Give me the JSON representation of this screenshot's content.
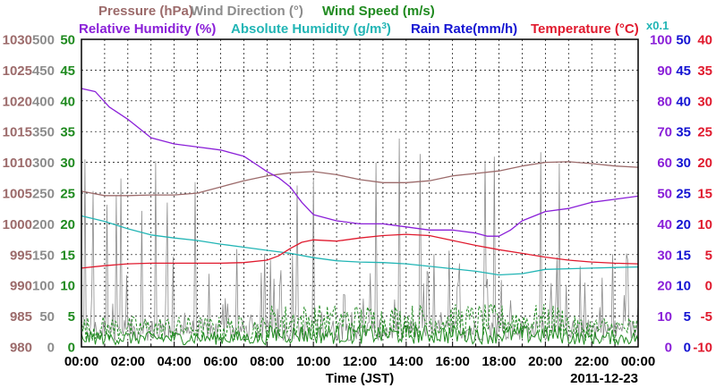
{
  "chart_data": {
    "type": "line",
    "date_label": "2011-12-23",
    "xlabel": "Time (JST)",
    "x_ticks": [
      "00:00",
      "02:00",
      "04:00",
      "06:00",
      "08:00",
      "10:00",
      "12:00",
      "14:00",
      "16:00",
      "18:00",
      "20:00",
      "22:00",
      "00:00"
    ],
    "grid": true,
    "legend": [
      {
        "id": "pressure",
        "label": "Pressure (hPa)",
        "color": "#9c6b6b"
      },
      {
        "id": "wind_dir",
        "label": "Wind Direction (°)",
        "color": "#8c8c8c"
      },
      {
        "id": "wind_speed",
        "label": "Wind Speed (m/s)",
        "color": "#1f8a1f"
      },
      {
        "id": "rh",
        "label": "Relative Humidity (%)",
        "color": "#8a1fd8"
      },
      {
        "id": "abs_hum",
        "label": "Absolute Humidity (g/m",
        "sup": "3",
        "tail": ")",
        "color": "#22b5b5"
      },
      {
        "id": "rain",
        "label": "Rain Rate(mm/h)",
        "color": "#1414d2"
      },
      {
        "id": "temp",
        "label": "Temperature (°C)",
        "color": "#e01a2e"
      }
    ],
    "rain_scale_label": "x0.1",
    "axes": {
      "pressure": {
        "ticks": [
          "1030",
          "1025",
          "1020",
          "1015",
          "1010",
          "1005",
          "1000",
          "995",
          "990",
          "985",
          "980"
        ],
        "color": "#9c6b6b",
        "range": [
          980,
          1030
        ]
      },
      "wind_dir": {
        "ticks": [
          "500",
          "450",
          "400",
          "350",
          "300",
          "250",
          "200",
          "150",
          "100",
          "50",
          "0"
        ],
        "color": "#8c8c8c",
        "range": [
          0,
          500
        ]
      },
      "wind_speed": {
        "ticks": [
          "50",
          "45",
          "40",
          "35",
          "30",
          "25",
          "20",
          "15",
          "10",
          "5",
          "0"
        ],
        "color": "#1f8a1f",
        "range": [
          0,
          50
        ]
      },
      "rh": {
        "ticks": [
          "100",
          "90",
          "80",
          "70",
          "60",
          "50",
          "40",
          "30",
          "20",
          "10",
          "0"
        ],
        "color": "#8a1fd8",
        "range": [
          0,
          100
        ]
      },
      "rain": {
        "ticks": [
          "50",
          "45",
          "40",
          "35",
          "30",
          "25",
          "20",
          "15",
          "10",
          "5",
          "0"
        ],
        "color": "#1414d2",
        "range": [
          0,
          50
        ]
      },
      "temp": {
        "ticks": [
          "40",
          "35",
          "30",
          "25",
          "20",
          "15",
          "10",
          "5",
          "0",
          "-5",
          "-10"
        ],
        "color": "#e01a2e",
        "range": [
          -10,
          40
        ]
      }
    },
    "series": [
      {
        "name": "Pressure (hPa)",
        "axis": "pressure",
        "hours": [
          0,
          1,
          2,
          3,
          4,
          5,
          6,
          7,
          8,
          9,
          10,
          11,
          12,
          13,
          14,
          15,
          16,
          17,
          18,
          19,
          20,
          21,
          22,
          23,
          24
        ],
        "values": [
          1005.3,
          1004.6,
          1004.6,
          1004.7,
          1004.7,
          1005.0,
          1006.0,
          1007.0,
          1007.8,
          1008.3,
          1008.5,
          1008.0,
          1007.2,
          1006.7,
          1006.7,
          1007.0,
          1007.8,
          1008.2,
          1008.6,
          1009.4,
          1010.0,
          1010.1,
          1009.8,
          1009.4,
          1009.2
        ]
      },
      {
        "name": "Relative Humidity (%)",
        "axis": "rh",
        "hours": [
          0,
          0.6,
          1.2,
          2,
          3,
          4,
          5,
          6,
          7,
          7.6,
          8,
          8.5,
          9,
          9.5,
          10,
          11,
          12,
          13,
          14,
          15,
          16,
          17,
          17.5,
          18,
          18.5,
          19,
          20,
          21,
          22,
          23,
          24
        ],
        "values": [
          84,
          83,
          78,
          74,
          68,
          66,
          65,
          64,
          62,
          59,
          57,
          55,
          52,
          47,
          43,
          41,
          40,
          40,
          39,
          38,
          38,
          37,
          36,
          36,
          38,
          41,
          44,
          45,
          47,
          48,
          49
        ]
      },
      {
        "name": "Absolute Humidity (g/m3)",
        "axis": "pressure",
        "hours": [
          0,
          1,
          2,
          3,
          4,
          5,
          6,
          7,
          8,
          9,
          10,
          11,
          12,
          13,
          14,
          15,
          16,
          17,
          18,
          19,
          20,
          21,
          22,
          23,
          24
        ],
        "values": [
          1001.3,
          1000.4,
          999.2,
          998.2,
          997.7,
          997.3,
          996.7,
          996.2,
          995.7,
          995.2,
          994.5,
          994.0,
          993.8,
          993.7,
          993.5,
          993.1,
          992.7,
          992.3,
          991.7,
          991.9,
          992.6,
          992.7,
          992.8,
          992.9,
          993.0
        ]
      },
      {
        "name": "Temperature (°C)",
        "axis": "temp",
        "hours": [
          0,
          1,
          2,
          3,
          4,
          5,
          6,
          7,
          8,
          8.5,
          9,
          9.5,
          10,
          11,
          12,
          13,
          14,
          15,
          16,
          17,
          18,
          19,
          20,
          21,
          22,
          23,
          24
        ],
        "values": [
          2.8,
          3.2,
          3.5,
          3.6,
          3.6,
          3.6,
          3.6,
          3.7,
          4.1,
          4.8,
          6.0,
          7.0,
          7.4,
          7.2,
          7.7,
          8.1,
          8.3,
          8.1,
          7.3,
          6.5,
          5.8,
          5.2,
          4.6,
          4.1,
          3.8,
          3.6,
          3.5
        ]
      }
    ]
  }
}
